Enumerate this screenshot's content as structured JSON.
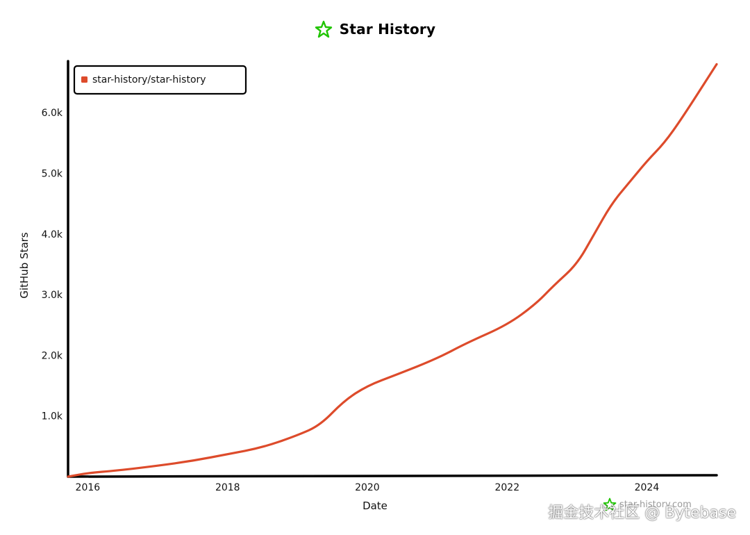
{
  "header": {
    "title": "Star History",
    "logo_icon": "star-logo-icon"
  },
  "footer": {
    "site": "star-history.com",
    "logo_icon": "star-logo-icon"
  },
  "watermark": {
    "text": "掘金技术社区 @ Bytebase"
  },
  "colors": {
    "line": "#dd4b2b",
    "logo": "#1fc400",
    "axis": "#000000"
  },
  "chart_data": {
    "type": "line",
    "title": "Star History",
    "xlabel": "Date",
    "ylabel": "GitHub Stars",
    "xlim": [
      "2015-09-20",
      "2024-12-31"
    ],
    "ylim": [
      0,
      6850
    ],
    "x_ticks": [
      "2016",
      "2018",
      "2020",
      "2022",
      "2024"
    ],
    "y_ticks": [
      "1.0k",
      "2.0k",
      "3.0k",
      "4.0k",
      "5.0k",
      "6.0k"
    ],
    "grid": false,
    "legend_position": "top-left",
    "series": [
      {
        "name": "star-history/star-history",
        "points": [
          [
            "2015-09-20",
            0
          ],
          [
            "2016-01-01",
            60
          ],
          [
            "2016-06-01",
            100
          ],
          [
            "2017-01-01",
            180
          ],
          [
            "2017-07-01",
            260
          ],
          [
            "2018-01-01",
            370
          ],
          [
            "2018-07-01",
            480
          ],
          [
            "2019-01-01",
            680
          ],
          [
            "2019-05-01",
            850
          ],
          [
            "2019-09-01",
            1250
          ],
          [
            "2020-01-01",
            1500
          ],
          [
            "2020-06-01",
            1680
          ],
          [
            "2021-01-01",
            1950
          ],
          [
            "2021-06-01",
            2200
          ],
          [
            "2022-01-01",
            2500
          ],
          [
            "2022-06-01",
            2850
          ],
          [
            "2022-09-01",
            3150
          ],
          [
            "2023-01-01",
            3500
          ],
          [
            "2023-04-01",
            4000
          ],
          [
            "2023-07-01",
            4500
          ],
          [
            "2023-10-01",
            4850
          ],
          [
            "2024-01-01",
            5200
          ],
          [
            "2024-04-01",
            5500
          ],
          [
            "2024-07-01",
            5900
          ],
          [
            "2024-12-31",
            6800
          ]
        ]
      }
    ]
  }
}
